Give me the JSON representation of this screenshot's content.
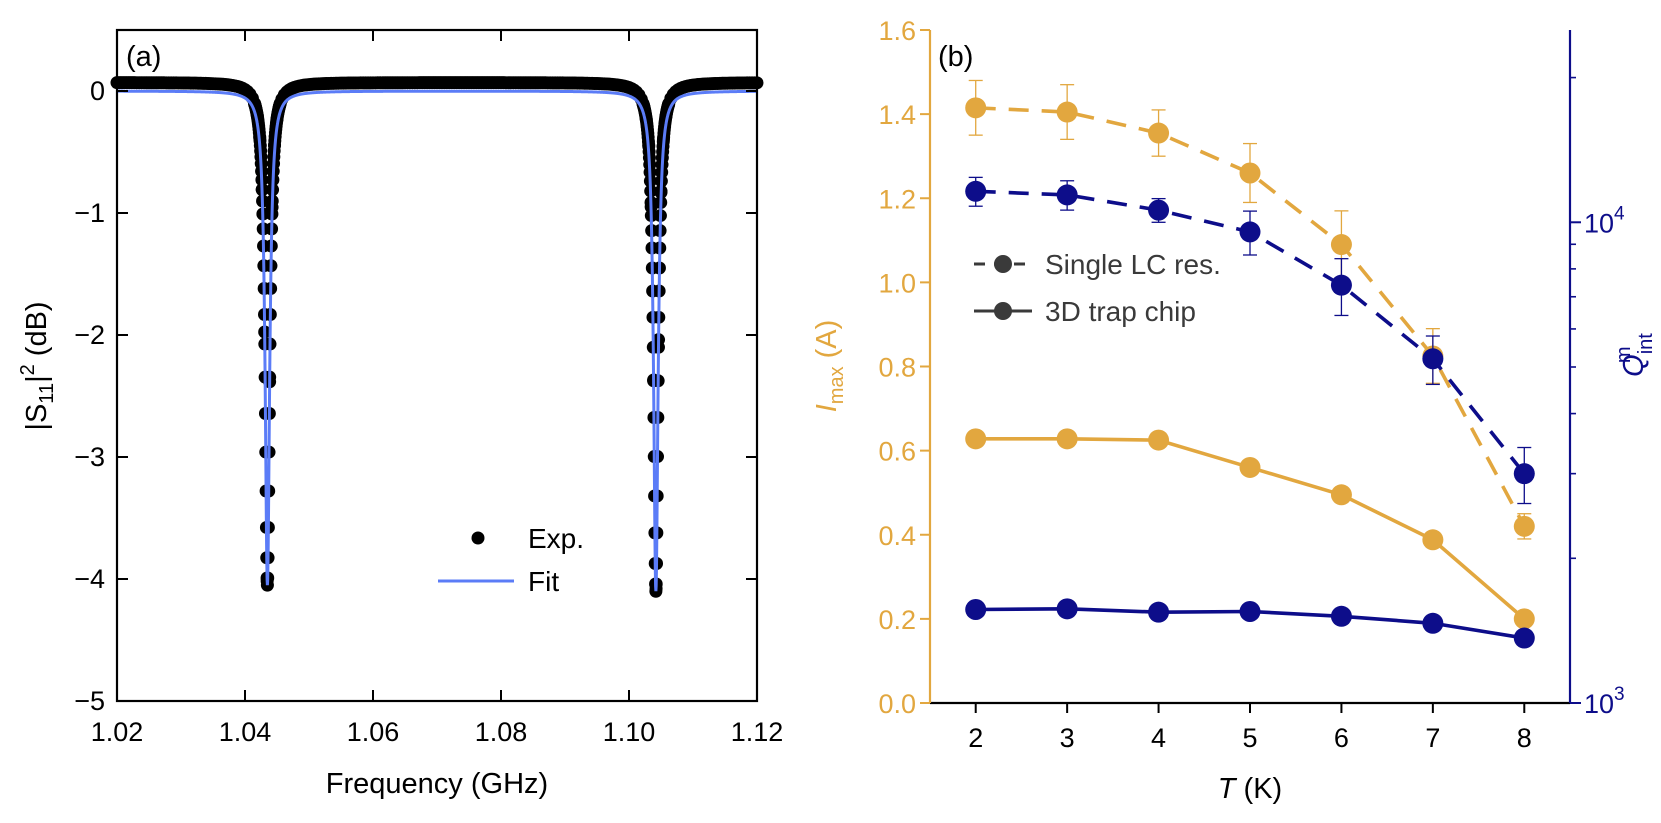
{
  "chart_data": [
    {
      "type": "line",
      "panel_label": "(a)",
      "xlabel": "Frequency (GHz)",
      "ylabel_parts": {
        "main": "|S",
        "sub": "11",
        "mid": "|",
        "sup": "2",
        "unit": " (dB)"
      },
      "xlim": [
        1.02,
        1.12
      ],
      "ylim": [
        -5,
        0.5
      ],
      "x_ticks": [
        1.02,
        1.04,
        1.06,
        1.08,
        1.1,
        1.12
      ],
      "x_tick_labels": [
        "1.02",
        "1.04",
        "1.06",
        "1.08",
        "1.10",
        "1.12"
      ],
      "y_ticks": [
        0,
        -1,
        -2,
        -3,
        -4,
        -5
      ],
      "y_tick_labels": [
        "0",
        "−1",
        "−2",
        "−3",
        "−4",
        "−5"
      ],
      "grid": false,
      "legend_position": "lower-right",
      "resonances": [
        {
          "f0": 1.0435,
          "depth_db": -4.05,
          "hwhm": 0.00042
        },
        {
          "f0": 1.1042,
          "depth_db": -4.1,
          "hwhm": 0.00042
        }
      ],
      "series": [
        {
          "name": "Exp.",
          "style": "markers",
          "color": "#000000",
          "baseline_db": 0.07,
          "f_start": 1.02,
          "f_end": 1.12,
          "points": 260
        },
        {
          "name": "Fit",
          "style": "line",
          "color": "#5b7cf7",
          "baseline_db": 0.0
        }
      ]
    },
    {
      "type": "line",
      "panel_label": "(b)",
      "xlabel_italic": "T",
      "xlabel_rest": " (K)",
      "ylabel_left_italic": "I",
      "ylabel_left_sub": "max",
      "ylabel_left_rest": " (A)",
      "ylabel_right_italic": "Q",
      "ylabel_right_sub": "int",
      "ylabel_right_sup": "m",
      "xlim": [
        1.5,
        8.5
      ],
      "ylim_left": [
        0,
        1.6
      ],
      "ylim_right_log10": [
        3,
        4.4
      ],
      "x_ticks": [
        2,
        3,
        4,
        5,
        6,
        7,
        8
      ],
      "x_tick_labels": [
        "2",
        "3",
        "4",
        "5",
        "6",
        "7",
        "8"
      ],
      "y_left_ticks": [
        0,
        0.2,
        0.4,
        0.6,
        0.8,
        1.0,
        1.2,
        1.4,
        1.6
      ],
      "y_left_tick_labels": [
        "0.0",
        "0.2",
        "0.4",
        "0.6",
        "0.8",
        "1.0",
        "1.2",
        "1.4",
        "1.6"
      ],
      "y_right_ticks": [
        {
          "value": 1000,
          "base": "10",
          "exp": "3"
        },
        {
          "value": 10000,
          "base": "10",
          "exp": "4"
        }
      ],
      "legend_position": "upper-left",
      "legend": [
        {
          "label": "Single LC res.",
          "style": "dashed"
        },
        {
          "label": "3D trap chip",
          "style": "solid"
        }
      ],
      "colors": {
        "left": "#e2a73f",
        "right": "#0d0d8a",
        "legend": "#3a3a3a"
      },
      "x": [
        2,
        3,
        4,
        5,
        6,
        7,
        8
      ],
      "series": [
        {
          "name": "Imax Single LC res.",
          "axis": "left",
          "style": "dashed",
          "values": [
            1.415,
            1.405,
            1.355,
            1.26,
            1.09,
            0.825,
            0.42
          ],
          "errors": [
            0.065,
            0.065,
            0.055,
            0.07,
            0.08,
            0.065,
            0.03
          ]
        },
        {
          "name": "Imax 3D trap chip",
          "axis": "left",
          "style": "solid",
          "values": [
            0.628,
            0.628,
            0.625,
            0.56,
            0.495,
            0.388,
            0.2
          ],
          "errors": []
        },
        {
          "name": "Qint Single LC res.",
          "axis": "right",
          "style": "dashed",
          "values": [
            11600,
            11400,
            10600,
            9550,
            7400,
            5200,
            3000
          ],
          "errors": [
            800,
            800,
            600,
            1000,
            1000,
            600,
            400
          ]
        },
        {
          "name": "Qint 3D trap chip",
          "axis": "right",
          "style": "solid",
          "values": [
            1565,
            1570,
            1545,
            1550,
            1515,
            1465,
            1365
          ],
          "errors": []
        }
      ]
    }
  ]
}
